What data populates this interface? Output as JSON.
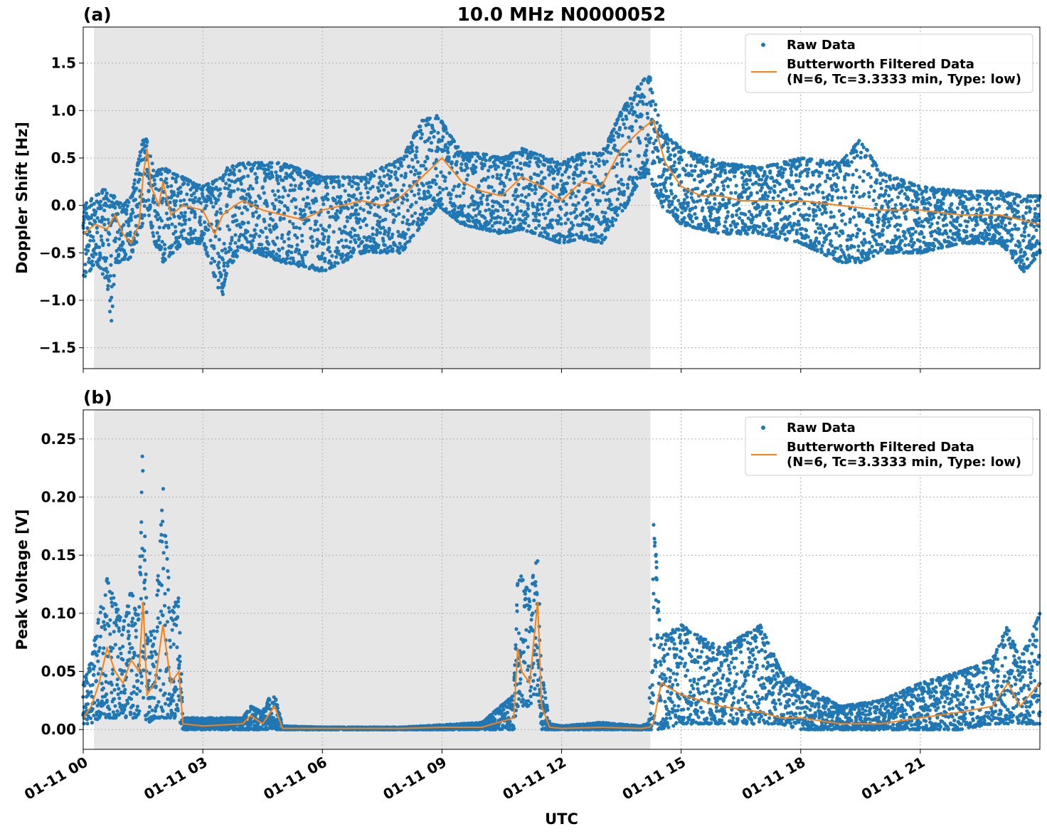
{
  "chart_data": {
    "type": "line",
    "title": "10.0 MHz N0000052",
    "xlabel": "UTC",
    "x_ticks": [
      "01-11 00",
      "01-11 03",
      "01-11 06",
      "01-11 09",
      "01-11 12",
      "01-11 15",
      "01-11 18",
      "01-11 21"
    ],
    "xlim_hours": [
      0,
      24
    ],
    "shaded_interval_hours": [
      0.27,
      14.23
    ],
    "grid": true,
    "legend_position": "upper right",
    "legend": {
      "raw": "Raw Data",
      "filtered_line1": "Butterworth Filtered Data",
      "filtered_line2": "(N=6, Tc=3.3333 min, Type: low)"
    },
    "colors": {
      "raw": "#1f77b4",
      "filtered": "#ff7f0e",
      "shade": "#e6e6e6",
      "grid": "#b0b0b0"
    },
    "panels": [
      {
        "label": "(a)",
        "ylabel": "Doppler Shift [Hz]",
        "ylim": [
          -1.72,
          1.88
        ],
        "y_ticks": [
          "1.5",
          "1.0",
          "0.5",
          "0.0",
          "−0.5",
          "−1.0",
          "−1.5"
        ],
        "y_tick_values": [
          1.5,
          1.0,
          0.5,
          0.0,
          -0.5,
          -1.0,
          -1.5
        ],
        "series": [
          {
            "name": "Butterworth Filtered Data",
            "role": "filtered",
            "x": [
              0,
              0.3,
              0.6,
              0.8,
              1.0,
              1.2,
              1.4,
              1.5,
              1.6,
              1.7,
              1.9,
              2.0,
              2.2,
              2.5,
              3.0,
              3.3,
              3.5,
              3.8,
              4.0,
              4.5,
              5.0,
              5.5,
              6.0,
              6.5,
              7.0,
              7.5,
              8.0,
              8.5,
              9.0,
              9.5,
              10.0,
              10.5,
              11.0,
              11.5,
              12.0,
              12.5,
              13.0,
              13.5,
              14.0,
              14.3,
              14.6,
              15.0,
              15.5,
              16.0,
              16.5,
              17.0,
              18.0,
              19.0,
              20.0,
              21.0,
              22.0,
              23.0,
              24.0
            ],
            "y": [
              -0.3,
              -0.2,
              -0.25,
              -0.1,
              -0.3,
              -0.4,
              -0.2,
              0.3,
              0.6,
              0.2,
              0.0,
              0.25,
              -0.1,
              0.0,
              -0.05,
              -0.3,
              -0.1,
              0.0,
              0.05,
              -0.05,
              -0.1,
              -0.15,
              -0.05,
              0.0,
              0.05,
              0.0,
              0.1,
              0.3,
              0.5,
              0.25,
              0.15,
              0.1,
              0.3,
              0.2,
              0.05,
              0.25,
              0.2,
              0.6,
              0.8,
              0.9,
              0.45,
              0.2,
              0.1,
              0.1,
              0.05,
              0.05,
              0.05,
              0.0,
              -0.05,
              -0.05,
              -0.1,
              -0.1,
              -0.2
            ]
          },
          {
            "name": "Raw Data",
            "role": "raw",
            "x": [
              0,
              0.3,
              0.6,
              0.7,
              0.8,
              1.0,
              1.2,
              1.5,
              1.6,
              1.8,
              2.0,
              2.5,
              3.0,
              3.5,
              3.6,
              4.0,
              5.0,
              6.0,
              7.0,
              8.0,
              8.5,
              8.9,
              9.5,
              10.0,
              10.5,
              11.0,
              12.0,
              12.5,
              13.0,
              13.5,
              14.0,
              14.2,
              14.5,
              15.0,
              16.0,
              17.0,
              18.0,
              19.0,
              19.5,
              20.0,
              21.0,
              22.0,
              23.0,
              23.6,
              24.0
            ],
            "y_low": [
              -0.8,
              -0.6,
              -0.8,
              -1.3,
              -0.6,
              -0.6,
              -0.55,
              -0.2,
              0.0,
              -0.4,
              -0.6,
              -0.4,
              -0.4,
              -1.0,
              -0.7,
              -0.45,
              -0.6,
              -0.7,
              -0.5,
              -0.5,
              -0.2,
              0.0,
              -0.2,
              -0.25,
              -0.3,
              -0.25,
              -0.4,
              -0.35,
              -0.4,
              -0.1,
              0.3,
              0.3,
              0.0,
              -0.2,
              -0.3,
              -0.3,
              -0.4,
              -0.6,
              -0.6,
              -0.5,
              -0.5,
              -0.4,
              -0.4,
              -0.7,
              -0.5
            ],
            "y_high": [
              0.0,
              0.1,
              0.2,
              0.1,
              0.1,
              0.0,
              0.1,
              0.7,
              0.7,
              0.35,
              0.4,
              0.3,
              0.2,
              0.3,
              0.4,
              0.45,
              0.45,
              0.3,
              0.3,
              0.5,
              0.9,
              0.95,
              0.55,
              0.55,
              0.5,
              0.6,
              0.45,
              0.55,
              0.55,
              1.0,
              1.3,
              1.4,
              0.8,
              0.6,
              0.45,
              0.4,
              0.5,
              0.45,
              0.7,
              0.35,
              0.2,
              0.15,
              0.15,
              0.1,
              0.1
            ]
          }
        ]
      },
      {
        "label": "(b)",
        "ylabel": "Peak Voltage [V]",
        "ylim": [
          -0.017,
          0.275
        ],
        "y_ticks": [
          "0.25",
          "0.20",
          "0.15",
          "0.10",
          "0.05",
          "0.00"
        ],
        "y_tick_values": [
          0.25,
          0.2,
          0.15,
          0.1,
          0.05,
          0.0
        ],
        "series": [
          {
            "name": "Butterworth Filtered Data",
            "role": "filtered",
            "x": [
              0,
              0.2,
              0.4,
              0.6,
              0.8,
              1.0,
              1.2,
              1.4,
              1.5,
              1.6,
              1.8,
              2.0,
              2.2,
              2.4,
              2.5,
              3.0,
              4.0,
              4.2,
              4.5,
              4.7,
              4.8,
              5.0,
              6.0,
              8.0,
              9.0,
              10.0,
              10.8,
              10.9,
              11.0,
              11.2,
              11.4,
              11.5,
              11.7,
              12.0,
              13.0,
              14.0,
              14.2,
              14.3,
              14.5,
              15.0,
              16.0,
              17.0,
              17.5,
              18.0,
              19.0,
              20.0,
              21.0,
              22.0,
              22.8,
              23.2,
              23.5,
              24.0
            ],
            "y": [
              0.01,
              0.02,
              0.04,
              0.07,
              0.05,
              0.04,
              0.06,
              0.05,
              0.11,
              0.03,
              0.04,
              0.09,
              0.04,
              0.05,
              0.005,
              0.003,
              0.005,
              0.012,
              0.005,
              0.015,
              0.02,
              0.001,
              0.001,
              0.001,
              0.002,
              0.002,
              0.01,
              0.07,
              0.05,
              0.04,
              0.11,
              0.02,
              0.002,
              0.001,
              0.002,
              0.001,
              0.002,
              0.005,
              0.04,
              0.03,
              0.02,
              0.015,
              0.01,
              0.01,
              0.005,
              0.005,
              0.01,
              0.015,
              0.02,
              0.04,
              0.02,
              0.04
            ]
          },
          {
            "name": "Raw Data",
            "role": "raw",
            "x": [
              0,
              0.2,
              0.4,
              0.6,
              0.8,
              1.0,
              1.2,
              1.4,
              1.5,
              1.6,
              1.8,
              2.0,
              2.2,
              2.4,
              2.5,
              3.0,
              4.0,
              4.2,
              4.5,
              4.7,
              4.8,
              5.0,
              6.0,
              8.0,
              9.0,
              10.0,
              10.8,
              10.9,
              11.0,
              11.2,
              11.4,
              11.5,
              11.7,
              12.0,
              13.0,
              14.0,
              14.2,
              14.3,
              14.5,
              15.0,
              16.0,
              17.0,
              17.5,
              18.0,
              19.0,
              20.0,
              21.0,
              22.0,
              22.8,
              23.2,
              23.5,
              24.0
            ],
            "y_low": [
              0.005,
              0.005,
              0.01,
              0.01,
              0.01,
              0.01,
              0.01,
              0.01,
              0.02,
              0.005,
              0.01,
              0.01,
              0.01,
              0.01,
              0.0,
              0.0,
              0.0,
              0.0,
              0.0,
              0.0,
              0.0,
              0.0,
              0.0,
              0.0,
              0.0,
              0.0,
              0.0,
              0.02,
              0.02,
              0.02,
              0.03,
              0.0,
              0.0,
              0.0,
              0.0,
              0.0,
              0.0,
              0.0,
              0.0,
              0.005,
              0.005,
              0.005,
              0.005,
              0.0,
              0.0,
              0.0,
              0.0,
              0.0,
              0.005,
              0.005,
              0.005,
              0.005
            ],
            "y_high": [
              0.04,
              0.06,
              0.1,
              0.13,
              0.11,
              0.09,
              0.12,
              0.1,
              0.26,
              0.08,
              0.09,
              0.21,
              0.1,
              0.12,
              0.01,
              0.01,
              0.01,
              0.02,
              0.015,
              0.03,
              0.03,
              0.003,
              0.002,
              0.002,
              0.004,
              0.006,
              0.03,
              0.14,
              0.13,
              0.12,
              0.15,
              0.05,
              0.005,
              0.003,
              0.006,
              0.003,
              0.006,
              0.19,
              0.08,
              0.09,
              0.07,
              0.09,
              0.05,
              0.04,
              0.02,
              0.025,
              0.04,
              0.05,
              0.06,
              0.09,
              0.06,
              0.1
            ]
          }
        ]
      }
    ]
  }
}
